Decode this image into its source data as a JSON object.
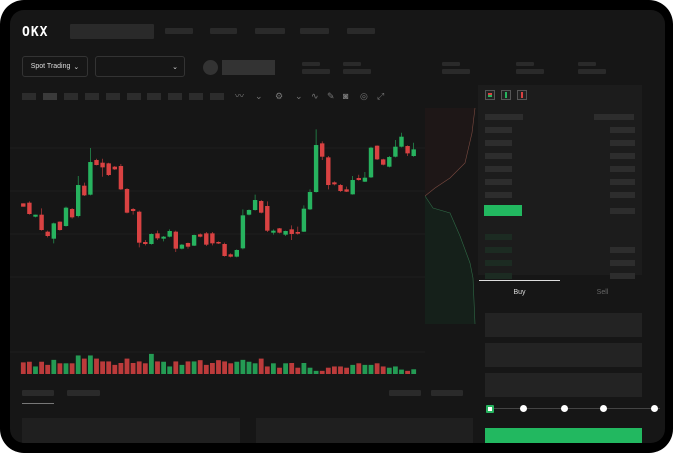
{
  "header": {
    "logo": "OKX",
    "nav_items": 5
  },
  "toolbar": {
    "market_button": "Spot Trading",
    "pair_select": ""
  },
  "order_form": {
    "tabs": [
      "Buy",
      "Sell"
    ],
    "active_tab": "Buy",
    "slider_fraction": 0,
    "submit_color": "#22b860"
  },
  "colors": {
    "up": "#27b35f",
    "down": "#d94242",
    "background": "#161616"
  },
  "chart_data": {
    "type": "candlestick",
    "grid": true,
    "candles": [
      [
        42.5,
        42.5,
        40,
        40
      ],
      [
        43,
        44,
        34.5,
        34
      ],
      [
        32.5,
        34,
        34,
        32
      ],
      [
        34,
        38.75,
        22.5,
        22
      ],
      [
        21.25,
        22,
        18,
        17
      ],
      [
        16,
        28,
        27.5,
        12.5
      ],
      [
        28.75,
        29,
        22.5,
        22
      ],
      [
        25.5,
        40,
        39.25,
        25
      ],
      [
        38.25,
        39,
        32,
        31
      ],
      [
        33,
        63,
        56.25,
        32
      ],
      [
        55.75,
        58,
        48.5,
        48
      ],
      [
        49,
        84,
        73.5,
        48.5
      ],
      [
        75,
        76,
        71.25,
        71
      ],
      [
        73,
        76,
        69.5,
        62.5
      ],
      [
        72.5,
        73,
        63.75,
        63
      ],
      [
        70,
        70.5,
        68,
        67.5
      ],
      [
        70.5,
        72,
        53,
        52.5
      ],
      [
        53.25,
        54,
        35.5,
        35
      ],
      [
        38.25,
        39,
        36.75,
        34
      ],
      [
        36.25,
        37,
        13,
        9.5
      ],
      [
        13.5,
        15,
        12,
        11
      ],
      [
        12,
        20,
        19.5,
        11.5
      ],
      [
        20,
        22,
        16.25,
        15
      ],
      [
        16,
        18,
        17.5,
        14
      ],
      [
        17.5,
        23,
        21.75,
        17
      ],
      [
        21.25,
        22,
        8.5,
        6
      ],
      [
        8.5,
        12,
        11.5,
        8
      ],
      [
        12.75,
        13,
        10,
        8.5
      ],
      [
        10.75,
        19,
        18.75,
        10.5
      ],
      [
        19.25,
        20,
        17.5,
        17
      ],
      [
        20,
        21,
        11.5,
        10.5
      ],
      [
        20,
        21,
        12.5,
        11
      ],
      [
        13.5,
        14,
        12.5,
        12
      ],
      [
        12,
        13,
        3,
        2.5
      ],
      [
        4.25,
        5,
        2.5,
        2
      ],
      [
        2.5,
        8,
        7.5,
        2
      ],
      [
        8.75,
        38,
        33.5,
        8
      ],
      [
        34,
        38,
        37.5,
        33.5
      ],
      [
        37.5,
        49,
        45,
        37
      ],
      [
        44.25,
        45,
        35.5,
        35
      ],
      [
        40.5,
        44,
        22,
        21
      ],
      [
        20.5,
        23,
        22,
        19
      ],
      [
        23.75,
        24,
        20.5,
        20
      ],
      [
        19,
        22,
        21.75,
        18
      ],
      [
        23,
        26,
        19.5,
        15
      ],
      [
        21,
        25,
        19.75,
        19
      ],
      [
        21.25,
        41,
        38.5,
        21
      ],
      [
        38,
        53,
        51,
        37.5
      ],
      [
        51,
        98,
        86.25,
        50.5
      ],
      [
        87.5,
        89,
        77.5,
        75
      ],
      [
        77,
        78,
        56.25,
        53
      ],
      [
        58.25,
        59,
        56.75,
        56
      ],
      [
        56.25,
        57,
        51.75,
        51
      ],
      [
        53,
        55,
        51.25,
        51
      ],
      [
        49.25,
        63,
        60,
        49
      ],
      [
        61.5,
        64,
        60,
        59.5
      ],
      [
        58.75,
        66,
        61.75,
        58.5
      ],
      [
        62,
        85,
        84.25,
        61.5
      ],
      [
        85.75,
        86,
        75.5,
        75
      ],
      [
        75.5,
        76,
        71.5,
        71
      ],
      [
        70,
        78,
        77.25,
        69.5
      ],
      [
        77.5,
        90,
        85,
        77
      ],
      [
        85,
        95.5,
        92.5,
        84.5
      ],
      [
        85.5,
        86,
        80,
        78
      ],
      [
        78,
        88,
        83,
        77.5
      ]
    ],
    "candle_format": [
      "open",
      "high",
      "close",
      "low"
    ],
    "volume": [
      37,
      39,
      24,
      39,
      29,
      45,
      34,
      34,
      34,
      59,
      49,
      59,
      49,
      40,
      40,
      29,
      35,
      49,
      35,
      40,
      34,
      64,
      40,
      39,
      24,
      40,
      29,
      40,
      40,
      44,
      29,
      35,
      44,
      40,
      34,
      39,
      45,
      39,
      34,
      49,
      24,
      34,
      20,
      34,
      35,
      20,
      35,
      20,
      10,
      10,
      20,
      24,
      24,
      20,
      29,
      34,
      29,
      29,
      34,
      24,
      20,
      24,
      14,
      10,
      15
    ]
  }
}
